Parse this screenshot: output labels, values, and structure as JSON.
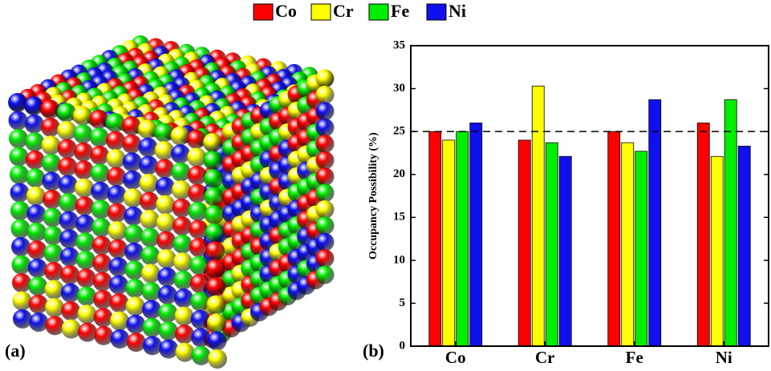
{
  "panel_labels": [
    "(a)",
    "(b)"
  ],
  "chart_data": {
    "type": "bar",
    "y_label": "Occupancy Possibility (%)",
    "categories": [
      "Co",
      "Cr",
      "Fe",
      "Ni"
    ],
    "series": [
      {
        "name": "Co",
        "color": "#ff0000",
        "values": [
          25,
          24,
          25,
          26
        ]
      },
      {
        "name": "Cr",
        "color": "#ffff00",
        "values": [
          24,
          30.3,
          23.7,
          22.1
        ]
      },
      {
        "name": "Fe",
        "color": "#00ee00",
        "values": [
          25,
          23.7,
          22.7,
          28.7
        ]
      },
      {
        "name": "Ni",
        "color": "#1010ee",
        "values": [
          26,
          22.1,
          28.7,
          23.3
        ]
      }
    ],
    "reference_line": 25,
    "ylim": [
      0,
      35
    ],
    "yticks": [
      0,
      5,
      10,
      15,
      20,
      25,
      30,
      35
    ],
    "legend": "top"
  }
}
